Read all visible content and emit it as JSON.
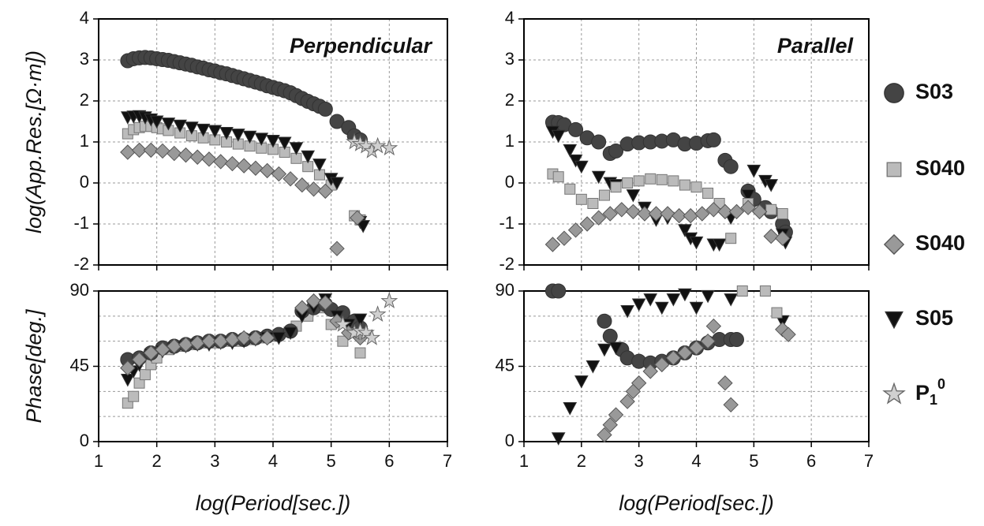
{
  "legend": [
    {
      "name": "S03",
      "marker": "circle",
      "color": "#444444"
    },
    {
      "name": "S040",
      "marker": "square",
      "color": "#bbbbbb"
    },
    {
      "name": "S040",
      "marker": "diamond",
      "color": "#999999"
    },
    {
      "name": "S05",
      "marker": "triangle",
      "color": "#111111"
    },
    {
      "name": "P",
      "subscript": "1",
      "superscript": "0",
      "marker": "star",
      "color": "#d0d0d0"
    }
  ],
  "chart_data": [
    {
      "type": "scatter",
      "title": "Perpendicular",
      "ylabel": "log(App.Res.[Ω·m])",
      "xlim": [
        1,
        7
      ],
      "xticks": [
        1,
        2,
        3,
        4,
        5,
        6,
        7
      ],
      "xticklabels": false,
      "ylim": [
        -2,
        4
      ],
      "yticks": [
        -2,
        -1,
        0,
        1,
        2,
        3,
        4
      ],
      "grid": true,
      "series": [
        {
          "legend_item": 0,
          "x": [
            1.5,
            1.6,
            1.7,
            1.8,
            1.9,
            2.0,
            2.1,
            2.2,
            2.3,
            2.4,
            2.5,
            2.6,
            2.7,
            2.8,
            2.9,
            3.0,
            3.1,
            3.2,
            3.3,
            3.4,
            3.5,
            3.6,
            3.7,
            3.8,
            3.9,
            4.0,
            4.1,
            4.2,
            4.3,
            4.4,
            4.5,
            4.6,
            4.7,
            4.8,
            4.9,
            5.1,
            5.3,
            5.4,
            5.5
          ],
          "y": [
            2.98,
            3.03,
            3.05,
            3.06,
            3.05,
            3.03,
            3.01,
            2.99,
            2.96,
            2.93,
            2.9,
            2.87,
            2.83,
            2.8,
            2.76,
            2.73,
            2.69,
            2.66,
            2.62,
            2.58,
            2.54,
            2.5,
            2.46,
            2.42,
            2.37,
            2.33,
            2.29,
            2.25,
            2.2,
            2.13,
            2.06,
            1.99,
            1.93,
            1.87,
            1.8,
            1.5,
            1.35,
            1.15,
            1.05
          ]
        },
        {
          "legend_item": 1,
          "x": [
            1.5,
            1.6,
            1.7,
            1.8,
            1.9,
            2.0,
            2.1,
            2.2,
            2.4,
            2.6,
            2.8,
            3.0,
            3.2,
            3.4,
            3.6,
            3.8,
            4.0,
            4.2,
            4.4,
            4.6,
            4.8,
            5.0,
            5.4,
            5.5
          ],
          "y": [
            1.2,
            1.3,
            1.35,
            1.38,
            1.38,
            1.35,
            1.32,
            1.28,
            1.22,
            1.15,
            1.1,
            1.05,
            1.0,
            0.95,
            0.9,
            0.85,
            0.82,
            0.75,
            0.6,
            0.4,
            0.2,
            -0.05,
            -0.8,
            -0.9
          ]
        },
        {
          "legend_item": 3,
          "x": [
            1.5,
            1.6,
            1.7,
            1.8,
            1.9,
            2.0,
            2.2,
            2.4,
            2.6,
            2.8,
            3.0,
            3.2,
            3.4,
            3.6,
            3.8,
            4.0,
            4.2,
            4.4,
            4.6,
            4.8,
            5.0,
            5.1,
            5.5,
            5.55
          ],
          "y": [
            1.6,
            1.62,
            1.63,
            1.6,
            1.55,
            1.5,
            1.45,
            1.4,
            1.35,
            1.3,
            1.27,
            1.22,
            1.18,
            1.13,
            1.08,
            1.03,
            0.98,
            0.85,
            0.65,
            0.45,
            0.1,
            0.0,
            -0.95,
            -1.05
          ]
        },
        {
          "legend_item": 2,
          "x": [
            1.5,
            1.7,
            1.9,
            2.1,
            2.3,
            2.5,
            2.7,
            2.9,
            3.1,
            3.3,
            3.5,
            3.7,
            3.9,
            4.1,
            4.3,
            4.5,
            4.7,
            4.9,
            5.1,
            5.45
          ],
          "y": [
            0.75,
            0.8,
            0.8,
            0.78,
            0.72,
            0.68,
            0.63,
            0.58,
            0.52,
            0.47,
            0.42,
            0.36,
            0.3,
            0.22,
            0.1,
            -0.05,
            -0.15,
            -0.2,
            -1.6,
            -0.85
          ]
        },
        {
          "legend_item": 4,
          "x": [
            5.4,
            5.5,
            5.6,
            5.7,
            5.8,
            6.0
          ],
          "y": [
            1.0,
            0.95,
            0.9,
            0.78,
            0.9,
            0.85
          ]
        }
      ]
    },
    {
      "type": "scatter",
      "title": "Parallel",
      "xlim": [
        1,
        7
      ],
      "xticks": [
        1,
        2,
        3,
        4,
        5,
        6,
        7
      ],
      "xticklabels": false,
      "ylim": [
        -2,
        4
      ],
      "yticks": [
        -2,
        -1,
        0,
        1,
        2,
        3,
        4
      ],
      "grid": true,
      "series": [
        {
          "legend_item": 0,
          "x": [
            1.5,
            1.6,
            1.7,
            1.9,
            2.1,
            2.3,
            2.5,
            2.6,
            2.8,
            3.0,
            3.2,
            3.4,
            3.6,
            3.8,
            4.0,
            4.2,
            4.3,
            4.5,
            4.6,
            4.9,
            5.0,
            5.2,
            5.3,
            5.5,
            5.55
          ],
          "y": [
            1.48,
            1.47,
            1.42,
            1.3,
            1.1,
            1.0,
            0.72,
            0.78,
            0.95,
            0.98,
            1.0,
            1.02,
            1.05,
            0.95,
            0.97,
            1.03,
            1.05,
            0.55,
            0.4,
            -0.2,
            -0.4,
            -0.6,
            -0.7,
            -1.0,
            -1.2
          ]
        },
        {
          "legend_item": 3,
          "x": [
            1.5,
            1.6,
            1.8,
            1.9,
            2.0,
            2.3,
            2.5,
            2.6,
            2.9,
            3.1,
            3.3,
            3.5,
            3.8,
            3.9,
            4.0,
            4.3,
            4.4,
            4.6,
            4.9,
            5.0,
            5.2,
            5.3,
            5.5,
            5.55
          ],
          "y": [
            1.25,
            1.15,
            0.8,
            0.55,
            0.4,
            0.15,
            0.0,
            -0.05,
            -0.3,
            -0.6,
            -0.9,
            -0.85,
            -1.15,
            -1.35,
            -1.45,
            -1.5,
            -1.5,
            -0.85,
            -0.3,
            0.3,
            0.05,
            -0.05,
            -1.25,
            -1.45
          ]
        },
        {
          "legend_item": 1,
          "x": [
            1.5,
            1.6,
            1.8,
            2.0,
            2.2,
            2.4,
            2.6,
            2.8,
            3.0,
            3.2,
            3.4,
            3.6,
            3.8,
            4.0,
            4.2,
            4.4,
            4.6,
            4.9,
            5.3,
            5.5
          ],
          "y": [
            0.22,
            0.15,
            -0.15,
            -0.4,
            -0.5,
            -0.3,
            -0.1,
            0.0,
            0.05,
            0.1,
            0.08,
            0.05,
            -0.05,
            -0.1,
            -0.25,
            -0.5,
            -1.35,
            -0.5,
            -0.65,
            -0.75
          ]
        },
        {
          "legend_item": 2,
          "x": [
            1.5,
            1.7,
            1.9,
            2.1,
            2.3,
            2.5,
            2.7,
            2.9,
            3.1,
            3.3,
            3.5,
            3.7,
            3.9,
            4.1,
            4.3,
            4.5,
            4.7,
            4.9,
            5.1,
            5.3,
            5.5
          ],
          "y": [
            -1.5,
            -1.35,
            -1.15,
            -1.0,
            -0.85,
            -0.75,
            -0.65,
            -0.7,
            -0.75,
            -0.75,
            -0.75,
            -0.8,
            -0.8,
            -0.75,
            -0.65,
            -0.7,
            -0.7,
            -0.6,
            -0.7,
            -1.3,
            -1.35
          ]
        }
      ]
    },
    {
      "type": "scatter",
      "ylabel": "Phase[deg.]",
      "xlabel": "log(Period[sec.])",
      "xlim": [
        1,
        7
      ],
      "xticks": [
        1,
        2,
        3,
        4,
        5,
        6,
        7
      ],
      "xticklabels": true,
      "ylim": [
        0,
        90
      ],
      "yticks": [
        0,
        45,
        90
      ],
      "ygrid": [
        15,
        30,
        60,
        75
      ],
      "grid": true,
      "series": [
        {
          "legend_item": 1,
          "x": [
            1.5,
            1.6,
            1.7,
            1.8,
            1.9,
            2.0,
            2.2,
            2.4,
            2.6,
            2.8,
            3.0,
            3.2,
            3.4,
            3.6,
            3.8,
            4.0,
            4.4,
            4.6,
            4.8,
            5.0,
            5.2,
            5.5
          ],
          "y": [
            23,
            27,
            35,
            40,
            46,
            50,
            55,
            57,
            58,
            59,
            59,
            60,
            60,
            61,
            62,
            63,
            69,
            75,
            80,
            70,
            60,
            53
          ]
        },
        {
          "legend_item": 0,
          "x": [
            1.5,
            1.7,
            1.9,
            2.1,
            2.3,
            2.5,
            2.7,
            2.9,
            3.1,
            3.3,
            3.5,
            3.7,
            3.9,
            4.1,
            4.3,
            4.5,
            4.7,
            4.9,
            5.0,
            5.2,
            5.4,
            5.5
          ],
          "y": [
            49,
            50,
            53,
            56,
            57,
            58,
            59,
            60,
            60,
            61,
            61,
            62,
            63,
            64,
            66,
            78,
            80,
            82,
            79,
            77,
            72,
            68
          ]
        },
        {
          "legend_item": 3,
          "x": [
            1.5,
            1.6,
            1.7,
            1.9,
            2.1,
            2.3,
            2.5,
            2.7,
            2.9,
            3.1,
            3.3,
            3.5,
            3.7,
            3.9,
            4.1,
            4.3,
            4.5,
            4.7,
            4.9,
            5.1,
            5.3,
            5.5
          ],
          "y": [
            37,
            42,
            46,
            52,
            54,
            56,
            57,
            58,
            58,
            59,
            59,
            60,
            61,
            62,
            62,
            65,
            75,
            80,
            85,
            75,
            70,
            73
          ]
        },
        {
          "legend_item": 2,
          "x": [
            1.5,
            1.7,
            1.9,
            2.1,
            2.3,
            2.5,
            2.7,
            2.9,
            3.1,
            3.3,
            3.5,
            3.7,
            3.9,
            4.5,
            4.7,
            4.9,
            5.1,
            5.3,
            5.5
          ],
          "y": [
            44,
            49,
            53,
            55,
            57,
            58,
            59,
            60,
            60,
            61,
            62,
            62,
            62,
            80,
            84,
            83,
            72,
            65,
            62
          ]
        },
        {
          "legend_item": 4,
          "x": [
            5.2,
            5.4,
            5.5,
            5.6,
            5.7,
            5.8,
            6.0
          ],
          "y": [
            70,
            65,
            66,
            65,
            62,
            76,
            84
          ]
        }
      ]
    },
    {
      "type": "scatter",
      "xlabel": "log(Period[sec.])",
      "xlim": [
        1,
        7
      ],
      "xticks": [
        1,
        2,
        3,
        4,
        5,
        6,
        7
      ],
      "xticklabels": true,
      "ylim": [
        0,
        90
      ],
      "yticks": [
        0,
        45,
        90
      ],
      "ygrid": [
        15,
        30,
        60,
        75
      ],
      "grid": true,
      "series": [
        {
          "legend_item": 0,
          "x": [
            1.5,
            1.6,
            2.4,
            2.5,
            2.7,
            2.8,
            3.0,
            3.2,
            3.4,
            3.6,
            3.8,
            4.0,
            4.2,
            4.4,
            4.6,
            4.7
          ],
          "y": [
            90,
            90,
            72,
            63,
            55,
            50,
            48,
            47,
            48,
            50,
            53,
            56,
            59,
            61,
            61,
            61
          ]
        },
        {
          "legend_item": 3,
          "x": [
            1.6,
            1.8,
            2.0,
            2.2,
            2.4,
            2.6,
            2.8,
            3.0,
            3.2,
            3.4,
            3.6,
            3.8,
            4.0,
            4.2,
            4.6,
            5.5
          ],
          "y": [
            2,
            20,
            36,
            45,
            55,
            56,
            78,
            82,
            85,
            80,
            85,
            88,
            80,
            87,
            85,
            72
          ]
        },
        {
          "legend_item": 1,
          "x": [
            4.8,
            5.2,
            5.4
          ],
          "y": [
            90,
            90,
            77
          ]
        },
        {
          "legend_item": 2,
          "x": [
            2.4,
            2.5,
            2.6,
            2.8,
            2.9,
            3.0,
            3.2,
            3.4,
            3.6,
            3.8,
            4.0,
            4.2,
            4.3,
            4.5,
            4.6,
            5.5,
            5.6
          ],
          "y": [
            4,
            10,
            16,
            24,
            30,
            35,
            42,
            46,
            50,
            53,
            56,
            60,
            69,
            35,
            22,
            67,
            64
          ]
        }
      ]
    }
  ]
}
